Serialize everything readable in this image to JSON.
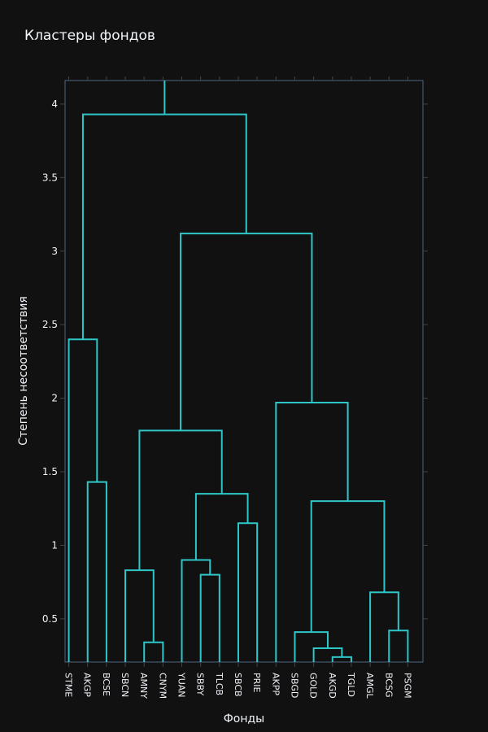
{
  "chart_data": {
    "type": "dendrogram",
    "title": "Кластеры фондов",
    "xlabel": "Фонды",
    "ylabel": "Степень несоответствия",
    "ylim": [
      0.206,
      4.16
    ],
    "yticks": [
      0.5,
      1,
      1.5,
      2,
      2.5,
      3,
      3.5,
      4
    ],
    "ytick_labels": [
      "0.5",
      "1",
      "1.5",
      "2",
      "2.5",
      "3",
      "3.5",
      "4"
    ],
    "grid": false,
    "line_color": "#2ec7c9",
    "leaves": [
      "STME",
      "AKGP",
      "BCSE",
      "SBCN",
      "AMNY",
      "CNYM",
      "YUAN",
      "SBBY",
      "TLCB",
      "SBCB",
      "PRIE",
      "AKPP",
      "SBGD",
      "GOLD",
      "AKGD",
      "TGLD",
      "AMGL",
      "BCSG",
      "PSGM"
    ],
    "merges": [
      {
        "left": "AMNY",
        "right": "CNYM",
        "height": 0.34,
        "id": "c1"
      },
      {
        "left": "SBCN",
        "right": "c1",
        "height": 0.83,
        "id": "c2"
      },
      {
        "left": "SBBY",
        "right": "TLCB",
        "height": 0.8,
        "id": "c3"
      },
      {
        "left": "YUAN",
        "right": "c3",
        "height": 0.9,
        "id": "c4"
      },
      {
        "left": "SBCB",
        "right": "PRIE",
        "height": 1.15,
        "id": "c5"
      },
      {
        "left": "c4",
        "right": "c5",
        "height": 1.35,
        "id": "c6"
      },
      {
        "left": "c2",
        "right": "c6",
        "height": 1.78,
        "id": "c7"
      },
      {
        "left": "AKGD",
        "right": "TGLD",
        "height": 0.24,
        "id": "c8"
      },
      {
        "left": "GOLD",
        "right": "c8",
        "height": 0.3,
        "id": "c9"
      },
      {
        "left": "SBGD",
        "right": "c9",
        "height": 0.41,
        "id": "c10"
      },
      {
        "left": "BCSG",
        "right": "PSGM",
        "height": 0.42,
        "id": "c11"
      },
      {
        "left": "AMGL",
        "right": "c11",
        "height": 0.68,
        "id": "c12"
      },
      {
        "left": "c10",
        "right": "c12",
        "height": 1.3,
        "id": "c13"
      },
      {
        "left": "AKPP",
        "right": "c13",
        "height": 1.97,
        "id": "c14"
      },
      {
        "left": "c7",
        "right": "c14",
        "height": 3.12,
        "id": "c15"
      },
      {
        "left": "AKGP",
        "right": "BCSE",
        "height": 1.43,
        "id": "c16"
      },
      {
        "left": "STME",
        "right": "c16",
        "height": 2.4,
        "id": "c17"
      },
      {
        "left": "c17",
        "right": "c15",
        "height": 3.93,
        "id": "c18"
      }
    ]
  }
}
